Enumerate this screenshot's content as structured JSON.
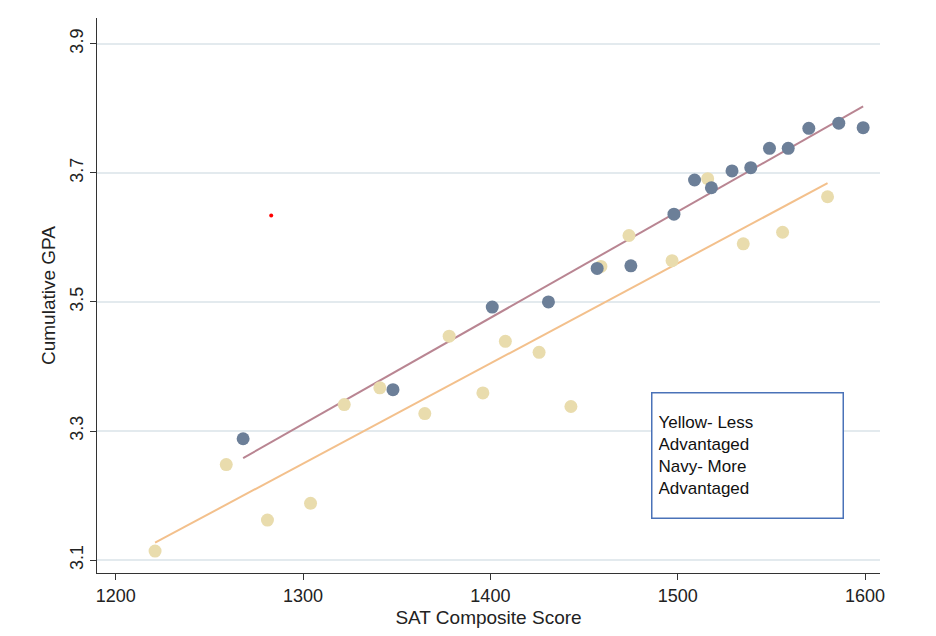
{
  "chart_data": {
    "type": "scatter",
    "x_label": "SAT Composite Score",
    "y_label": "Cumulative GPA",
    "xlim": [
      1190,
      1608
    ],
    "xticks": [
      1200,
      1300,
      1400,
      1500,
      1600
    ],
    "ylim": [
      3.08,
      3.94
    ],
    "yticks": [
      3.1,
      3.3,
      3.5,
      3.7,
      3.9
    ],
    "grid": true,
    "annotations": [
      {
        "lines": [
          "Yellow- Less",
          "Advantaged",
          "Navy- More",
          "Advantaged"
        ]
      }
    ],
    "series": [
      {
        "type": "line",
        "color": "#f3c08c",
        "x": [
          1221,
          1580
        ],
        "values": [
          3.127,
          3.684
        ]
      },
      {
        "type": "line",
        "color": "#b98592",
        "x": [
          1268,
          1599
        ],
        "values": [
          3.258,
          3.803
        ]
      },
      {
        "type": "scatter",
        "color": "#e9dcad",
        "marker": "circle",
        "x": [
          1221,
          1259,
          1281,
          1304,
          1322,
          1341,
          1365,
          1378,
          1396,
          1408,
          1426,
          1443,
          1459,
          1474,
          1497,
          1516,
          1535,
          1556,
          1580
        ],
        "values": [
          3.114,
          3.248,
          3.162,
          3.188,
          3.341,
          3.367,
          3.327,
          3.447,
          3.359,
          3.439,
          3.422,
          3.338,
          3.555,
          3.603,
          3.564,
          3.691,
          3.59,
          3.608,
          3.663
        ]
      },
      {
        "type": "scatter",
        "color": "#6c7f98",
        "marker": "circle",
        "x": [
          1268,
          1348,
          1401,
          1431,
          1457,
          1475,
          1498,
          1509,
          1518,
          1529,
          1539,
          1549,
          1559,
          1570,
          1586,
          1599
        ],
        "values": [
          3.288,
          3.364,
          3.492,
          3.5,
          3.552,
          3.556,
          3.636,
          3.689,
          3.677,
          3.703,
          3.708,
          3.738,
          3.738,
          3.769,
          3.777,
          3.77
        ]
      },
      {
        "type": "scatter",
        "color": "#ff0000",
        "marker": "point",
        "x": [
          1283
        ],
        "values": [
          3.634
        ]
      }
    ]
  }
}
